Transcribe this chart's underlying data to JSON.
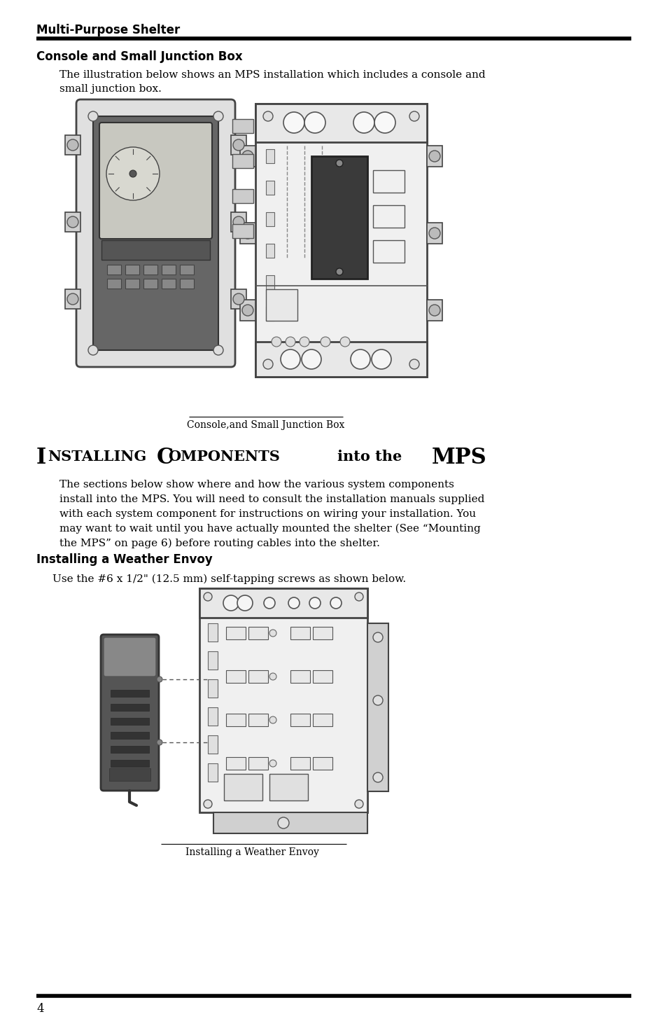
{
  "page_number": "4",
  "header_text": "Multi-Purpose Shelter",
  "section1_title": "Console and Small Junction Box",
  "section1_body_line1": "The illustration below shows an MPS installation which includes a console and",
  "section1_body_line2": "small junction box.",
  "figure1_caption": "Console,and Small Junction Box",
  "section2_heading_install": "I",
  "section2_heading_nstalling": "NSTALLING",
  "section2_heading_comp": "C",
  "section2_heading_omponents": "OMPONENTS",
  "section2_heading_into": "into the",
  "section2_heading_mps": "MPS",
  "section2_body": "The sections below show where and how the various system components\ninstall into the MPS. You will need to consult the installation manuals supplied\nwith each system component for instructions on wiring your installation. You\nmay want to wait until you have actually mounted the shelter (See “Mounting\nthe MPS” on page 6) before routing cables into the shelter.",
  "section3_title": "Installing a Weather Envoy",
  "section3_body": "Use the #6 x 1/2\" (12.5 mm) self-tapping screws as shown below.",
  "figure2_caption": "Installing a Weather Envoy",
  "bg_color": "#ffffff",
  "text_color": "#000000",
  "line_color": "#000000",
  "gray_dark": "#444444",
  "gray_mid": "#888888",
  "gray_light": "#cccccc",
  "gray_lighter": "#eeeeee"
}
